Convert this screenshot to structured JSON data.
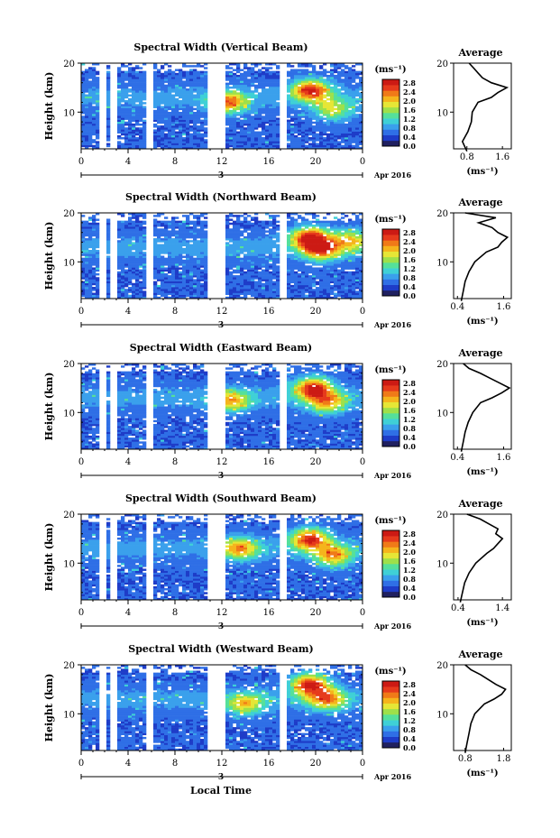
{
  "figure": {
    "xlabel": "Local Time",
    "month_label": "Apr 2016",
    "date_label": "3",
    "time_ticks": [
      "0",
      "4",
      "8",
      "12",
      "16",
      "20",
      "0"
    ],
    "height_ticks": [
      "20",
      "10"
    ],
    "ylabel": "Height (km)",
    "unit_label": "(ms⁻¹)",
    "colorbar_ticks": [
      "2.8",
      "2.4",
      "2.0",
      "1.6",
      "1.2",
      "0.8",
      "0.4",
      "0.0"
    ],
    "profile_title": "Average",
    "profile_xlabel": "(ms⁻¹)",
    "colormap": [
      "#202060",
      "#1e3cc8",
      "#2f6fe6",
      "#3aa0ec",
      "#3fd0d6",
      "#55e09a",
      "#9ee04a",
      "#e6e636",
      "#f5b41c",
      "#f07a18",
      "#e63a1c",
      "#cc1a14"
    ]
  },
  "chart_data": [
    {
      "type": "heatmap",
      "title": "Spectral Width (Vertical Beam)",
      "profile_ticks": [
        "0.8",
        "1.6"
      ],
      "profile_range": [
        0.5,
        1.8
      ],
      "gaps": [
        [
          1.6,
          2.1
        ],
        [
          2.4,
          3.0
        ],
        [
          5.5,
          6.0
        ],
        [
          10.8,
          12.3
        ],
        [
          17.0,
          17.5
        ]
      ],
      "hot_spots": [
        {
          "t": 19.6,
          "h": 14.5,
          "v": 2.7
        },
        {
          "t": 21.5,
          "h": 10.5,
          "v": 1.8
        },
        {
          "t": 12.5,
          "h": 12.0,
          "v": 2.3
        }
      ],
      "profile": [
        {
          "h": 2,
          "v": 0.8
        },
        {
          "h": 4,
          "v": 0.7
        },
        {
          "h": 6,
          "v": 0.82
        },
        {
          "h": 8,
          "v": 0.9
        },
        {
          "h": 10,
          "v": 0.92
        },
        {
          "h": 12,
          "v": 1.05
        },
        {
          "h": 13,
          "v": 1.35
        },
        {
          "h": 14,
          "v": 1.5
        },
        {
          "h": 15,
          "v": 1.7
        },
        {
          "h": 16,
          "v": 1.35
        },
        {
          "h": 17,
          "v": 1.15
        },
        {
          "h": 18,
          "v": 1.05
        },
        {
          "h": 19,
          "v": 0.95
        },
        {
          "h": 20,
          "v": 0.85
        }
      ]
    },
    {
      "type": "heatmap",
      "title": "Spectral Width (Northward Beam)",
      "profile_ticks": [
        "0.4",
        "1.6"
      ],
      "profile_range": [
        0.3,
        1.8
      ],
      "gaps": [
        [
          1.6,
          2.1
        ],
        [
          2.4,
          3.0
        ],
        [
          5.5,
          6.0
        ],
        [
          10.8,
          12.3
        ],
        [
          17.0,
          17.5
        ]
      ],
      "hot_spots": [
        {
          "t": 19.5,
          "h": 15.0,
          "v": 2.8
        },
        {
          "t": 20.5,
          "h": 12.5,
          "v": 2.4
        },
        {
          "t": 23.0,
          "h": 14.5,
          "v": 1.9
        }
      ],
      "profile": [
        {
          "h": 2,
          "v": 0.5
        },
        {
          "h": 4,
          "v": 0.55
        },
        {
          "h": 6,
          "v": 0.6
        },
        {
          "h": 8,
          "v": 0.7
        },
        {
          "h": 10,
          "v": 0.85
        },
        {
          "h": 12,
          "v": 1.15
        },
        {
          "h": 13,
          "v": 1.45
        },
        {
          "h": 14,
          "v": 1.55
        },
        {
          "h": 15,
          "v": 1.7
        },
        {
          "h": 16,
          "v": 1.45
        },
        {
          "h": 17,
          "v": 1.3
        },
        {
          "h": 18,
          "v": 0.95
        },
        {
          "h": 19,
          "v": 1.4
        },
        {
          "h": 20,
          "v": 0.6
        }
      ]
    },
    {
      "type": "heatmap",
      "title": "Spectral Width (Eastward Beam)",
      "profile_ticks": [
        "0.4",
        "1.6"
      ],
      "profile_range": [
        0.3,
        1.8
      ],
      "gaps": [
        [
          1.6,
          2.1
        ],
        [
          2.4,
          3.0
        ],
        [
          5.5,
          6.0
        ],
        [
          10.8,
          12.3
        ],
        [
          17.0,
          17.5
        ]
      ],
      "hot_spots": [
        {
          "t": 19.8,
          "h": 15.0,
          "v": 2.8
        },
        {
          "t": 21.0,
          "h": 12.0,
          "v": 2.0
        },
        {
          "t": 12.8,
          "h": 12.5,
          "v": 2.0
        }
      ],
      "profile": [
        {
          "h": 2,
          "v": 0.5
        },
        {
          "h": 4,
          "v": 0.55
        },
        {
          "h": 6,
          "v": 0.6
        },
        {
          "h": 8,
          "v": 0.68
        },
        {
          "h": 10,
          "v": 0.8
        },
        {
          "h": 12,
          "v": 1.0
        },
        {
          "h": 13,
          "v": 1.3
        },
        {
          "h": 14,
          "v": 1.55
        },
        {
          "h": 15,
          "v": 1.75
        },
        {
          "h": 16,
          "v": 1.5
        },
        {
          "h": 17,
          "v": 1.25
        },
        {
          "h": 18,
          "v": 1.0
        },
        {
          "h": 19,
          "v": 0.7
        },
        {
          "h": 20,
          "v": 0.55
        }
      ]
    },
    {
      "type": "heatmap",
      "title": "Spectral Width (Southward Beam)",
      "profile_ticks": [
        "0.4",
        "1.4"
      ],
      "profile_range": [
        0.3,
        1.6
      ],
      "gaps": [
        [
          1.6,
          2.1
        ],
        [
          2.4,
          3.0
        ],
        [
          5.5,
          6.0
        ],
        [
          10.8,
          12.3
        ],
        [
          17.0,
          17.5
        ]
      ],
      "hot_spots": [
        {
          "t": 19.5,
          "h": 15.0,
          "v": 2.7
        },
        {
          "t": 21.5,
          "h": 11.5,
          "v": 2.2
        },
        {
          "t": 13.5,
          "h": 13.0,
          "v": 2.1
        }
      ],
      "profile": [
        {
          "h": 2,
          "v": 0.45
        },
        {
          "h": 4,
          "v": 0.5
        },
        {
          "h": 6,
          "v": 0.55
        },
        {
          "h": 8,
          "v": 0.65
        },
        {
          "h": 10,
          "v": 0.8
        },
        {
          "h": 12,
          "v": 1.05
        },
        {
          "h": 13,
          "v": 1.2
        },
        {
          "h": 14,
          "v": 1.3
        },
        {
          "h": 15,
          "v": 1.4
        },
        {
          "h": 16,
          "v": 1.25
        },
        {
          "h": 17,
          "v": 1.3
        },
        {
          "h": 18,
          "v": 1.1
        },
        {
          "h": 19,
          "v": 0.9
        },
        {
          "h": 20,
          "v": 0.6
        }
      ]
    },
    {
      "type": "heatmap",
      "title": "Spectral Width (Westward Beam)",
      "profile_ticks": [
        "0.8",
        "1.8"
      ],
      "profile_range": [
        0.5,
        2.0
      ],
      "gaps": [
        [
          1.6,
          2.1
        ],
        [
          2.4,
          3.0
        ],
        [
          5.5,
          6.0
        ],
        [
          10.8,
          12.3
        ],
        [
          17.0,
          17.5
        ]
      ],
      "hot_spots": [
        {
          "t": 19.5,
          "h": 16.0,
          "v": 2.8
        },
        {
          "t": 21.0,
          "h": 13.0,
          "v": 2.2
        },
        {
          "t": 14.0,
          "h": 12.0,
          "v": 1.9
        }
      ],
      "profile": [
        {
          "h": 2,
          "v": 0.8
        },
        {
          "h": 4,
          "v": 0.85
        },
        {
          "h": 6,
          "v": 0.9
        },
        {
          "h": 8,
          "v": 0.95
        },
        {
          "h": 10,
          "v": 1.05
        },
        {
          "h": 12,
          "v": 1.3
        },
        {
          "h": 13,
          "v": 1.55
        },
        {
          "h": 14,
          "v": 1.75
        },
        {
          "h": 15,
          "v": 1.85
        },
        {
          "h": 16,
          "v": 1.6
        },
        {
          "h": 17,
          "v": 1.4
        },
        {
          "h": 18,
          "v": 1.2
        },
        {
          "h": 19,
          "v": 0.95
        },
        {
          "h": 20,
          "v": 0.8
        }
      ]
    }
  ]
}
